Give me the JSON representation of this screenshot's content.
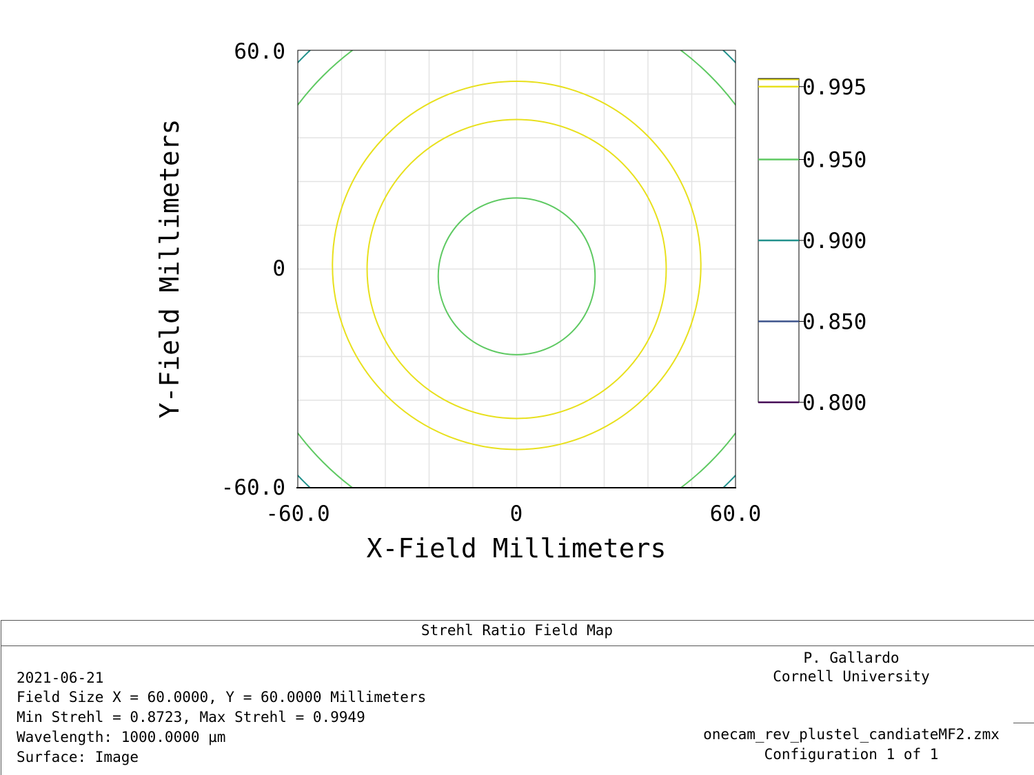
{
  "chart_data": {
    "type": "contour",
    "xlabel": "X-Field Millimeters",
    "ylabel": "Y-Field Millimeters",
    "xlim": [
      -60.0,
      60.0
    ],
    "ylim": [
      -60.0,
      60.0
    ],
    "x_ticks": [
      "-60.0",
      "0",
      "60.0"
    ],
    "y_ticks": [
      "60.0",
      "0",
      "-60.0"
    ],
    "grid": true,
    "legend_position": "right",
    "levels": [
      {
        "label": "0.995",
        "value": 0.995,
        "color": "#e8e01c"
      },
      {
        "label": "0.950",
        "value": 0.95,
        "color": "#5ec962"
      },
      {
        "label": "0.900",
        "value": 0.9,
        "color": "#21918c"
      },
      {
        "label": "0.850",
        "value": 0.85,
        "color": "#3b528b"
      },
      {
        "label": "0.800",
        "value": 0.8,
        "color": "#440154"
      }
    ],
    "contours": [
      {
        "level": 0.95,
        "center": [
          0,
          -2
        ],
        "radius": 21.5,
        "color": "#5ec962"
      },
      {
        "level": 0.98,
        "center": [
          0,
          0
        ],
        "radius": 41.0,
        "color": "#e8e01c"
      },
      {
        "level": 0.98,
        "center": [
          0,
          1
        ],
        "radius": 50.5,
        "color": "#e8e01c"
      },
      {
        "level": 0.95,
        "center": [
          0,
          0
        ],
        "radius": 75.0,
        "color": "#5ec962"
      },
      {
        "level": 0.9,
        "center": [
          0,
          0
        ],
        "radius": 82.5,
        "color": "#21918c"
      }
    ]
  },
  "info": {
    "title": "Strehl Ratio Field Map",
    "date": "2021-06-21",
    "field_size": "Field Size X = 60.0000, Y = 60.0000 Millimeters",
    "strehl_range": "Min Strehl = 0.8723, Max Strehl = 0.9949",
    "wavelength": "Wavelength: 1000.0000 µm",
    "surface": "Surface: Image",
    "author": "P. Gallardo",
    "institution": "Cornell University",
    "filename": "onecam_rev_plustel_candiateMF2.zmx",
    "configuration": "Configuration 1 of 1"
  }
}
